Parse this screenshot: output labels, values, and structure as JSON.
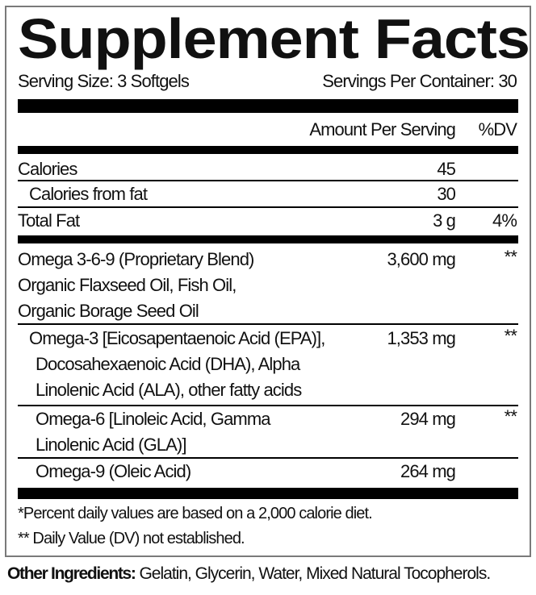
{
  "title": "Supplement Facts",
  "serving_size": "Serving Size: 3 Softgels",
  "servings_per_container": "Servings Per Container: 30",
  "header": {
    "amount": "Amount Per Serving",
    "dv": "%DV"
  },
  "rows": [
    {
      "lines": [
        "Calories"
      ],
      "amount": "45",
      "dv": ""
    },
    {
      "lines": [
        "Calories from fat"
      ],
      "amount": "30",
      "dv": ""
    },
    {
      "lines": [
        "Total Fat"
      ],
      "amount": "3 g",
      "dv": "4%"
    },
    {
      "lines": [
        "Omega 3-6-9 (Proprietary Blend)",
        "Organic Flaxseed Oil, Fish Oil,",
        "Organic Borage Seed Oil"
      ],
      "amount": "3,600 mg",
      "dv": "**"
    },
    {
      "lines": [
        "Omega-3 [Eicosapentaenoic Acid (EPA)],",
        "Docosahexaenoic Acid (DHA), Alpha",
        "Linolenic Acid (ALA), other fatty acids"
      ],
      "amount": "1,353 mg",
      "dv": "**"
    },
    {
      "lines": [
        "Omega-6 [Linoleic Acid, Gamma",
        "Linolenic Acid (GLA)]"
      ],
      "amount": "294 mg",
      "dv": "**"
    },
    {
      "lines": [
        "Omega-9 (Oleic Acid)"
      ],
      "amount": "264 mg",
      "dv": ""
    }
  ],
  "footnotes": [
    "*Percent daily values are based on a 2,000 calorie diet.",
    "** Daily Value (DV) not established."
  ],
  "other_ingredients": {
    "label": "Other Ingredients:",
    "text": " Gelatin, Glycerin, Water, Mixed Natural Tocopherols."
  }
}
